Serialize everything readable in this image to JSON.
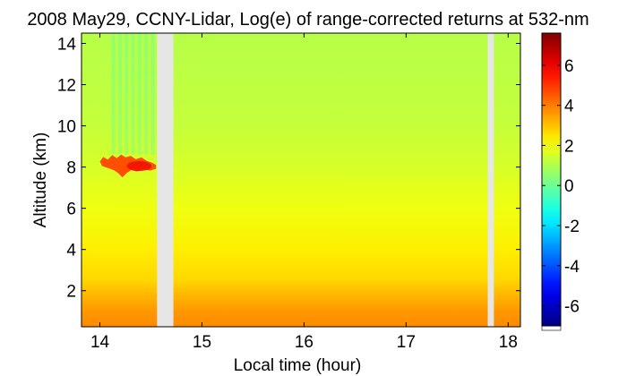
{
  "chart_data": {
    "type": "heatmap",
    "title": "2008 May29, CCNY-Lidar, Log(e) of range-corrected returns at 532-nm",
    "xlabel": "Local time (hour)",
    "ylabel": "Altitude (km)",
    "xlim": [
      13.82,
      18.12
    ],
    "ylim": [
      0.25,
      14.5
    ],
    "x_ticks": [
      14,
      15,
      16,
      17,
      18
    ],
    "y_ticks": [
      2,
      4,
      6,
      8,
      10,
      12,
      14
    ],
    "colorbar": {
      "range": [
        -7,
        7.6
      ],
      "ticks": [
        -6,
        -4,
        -2,
        0,
        2,
        4,
        6
      ],
      "colormap": "jet"
    },
    "data_gaps_hours": [
      [
        14.56,
        14.72
      ],
      [
        17.8,
        17.86
      ]
    ],
    "background_profile": [
      {
        "altitude_km": 0.25,
        "value": 3.8
      },
      {
        "altitude_km": 1.0,
        "value": 3.6
      },
      {
        "altitude_km": 1.9,
        "value": 3.1
      },
      {
        "altitude_km": 2.5,
        "value": 2.7
      },
      {
        "altitude_km": 4.0,
        "value": 2.35
      },
      {
        "altitude_km": 6.0,
        "value": 1.9
      },
      {
        "altitude_km": 8.0,
        "value": 1.55
      },
      {
        "altitude_km": 10.0,
        "value": 1.3
      },
      {
        "altitude_km": 12.0,
        "value": 1.2
      },
      {
        "altitude_km": 14.5,
        "value": 1.1
      }
    ],
    "features": [
      {
        "type": "cloud",
        "time_start_hour": 14.0,
        "time_end_hour": 14.55,
        "altitude_low_km": 7.5,
        "altitude_high_km": 8.6,
        "value": 4.8
      },
      {
        "type": "noise",
        "time_start_hour": 14.1,
        "time_end_hour": 14.55,
        "altitude_low_km": 8.6,
        "altitude_high_km": 14.5,
        "value": -0.5
      }
    ]
  }
}
